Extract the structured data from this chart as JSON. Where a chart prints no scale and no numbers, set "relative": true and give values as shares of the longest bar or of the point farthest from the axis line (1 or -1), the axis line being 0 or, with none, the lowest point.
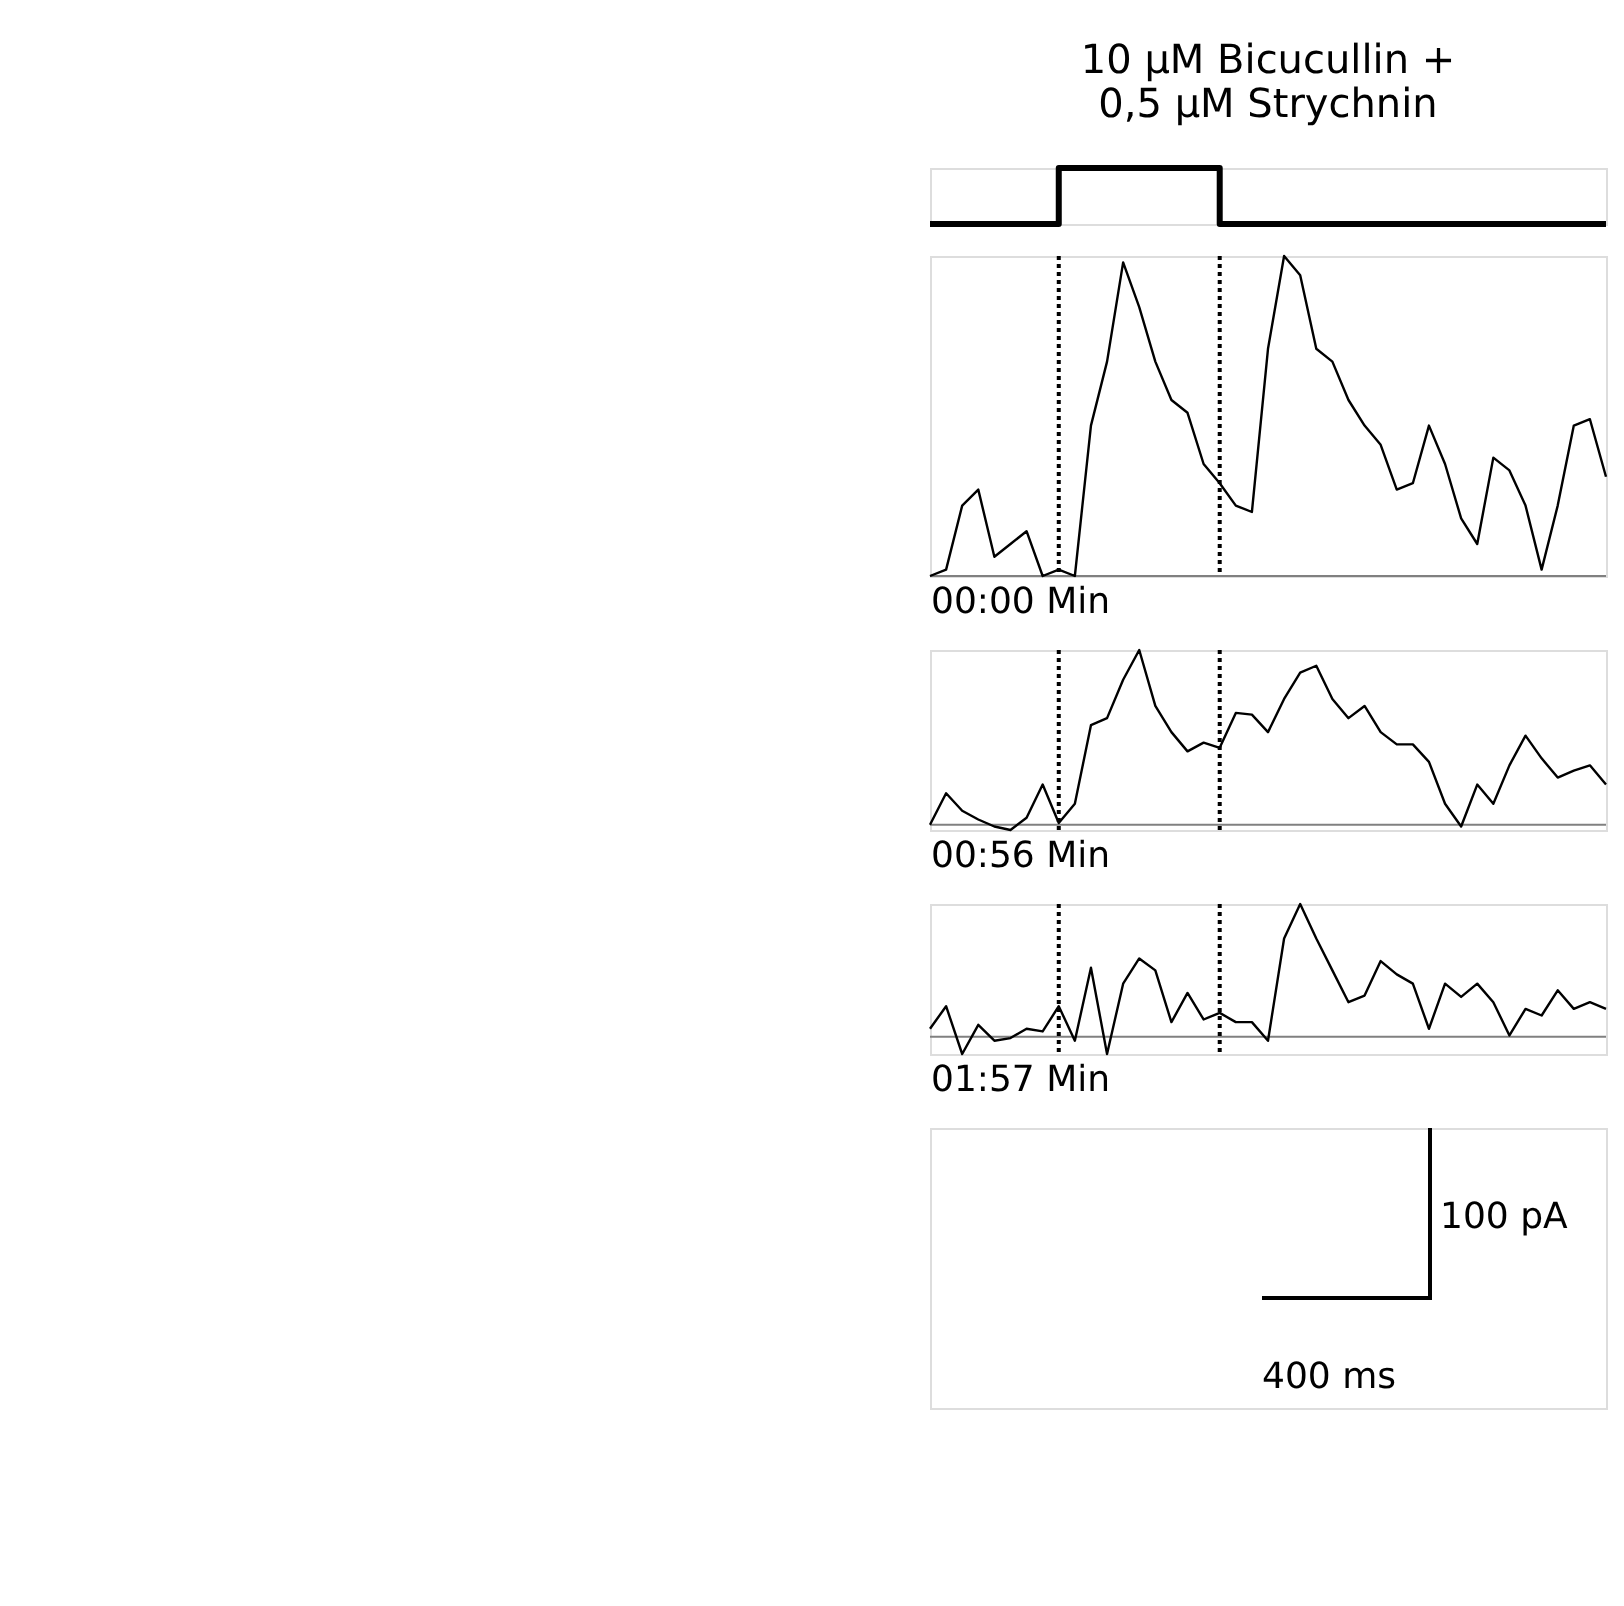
{
  "chart_data": [
    {
      "type": "step",
      "title": "10 μM Bicucullin +\n0,5 μM Strychnin",
      "relative": true,
      "tick_labels": false,
      "categories": [
        null,
        null,
        null,
        null,
        null,
        null,
        null,
        null,
        null,
        null,
        null,
        null,
        null,
        null,
        null,
        null,
        null,
        null,
        null,
        null,
        null,
        null,
        null,
        null,
        null,
        null,
        null,
        null,
        null,
        null,
        null,
        null,
        null,
        null,
        null,
        null,
        null,
        null,
        null,
        null,
        null,
        null,
        null
      ],
      "series": [
        {
          "color": "#000000",
          "values": [
            0,
            0,
            0,
            0,
            0,
            0,
            0,
            0,
            1,
            1,
            1,
            1,
            1,
            1,
            1,
            1,
            1,
            1,
            0,
            0,
            0,
            0,
            0,
            0,
            0,
            0,
            0,
            0,
            0,
            0,
            0,
            0,
            0,
            0,
            0,
            0,
            0,
            0,
            0,
            0,
            0,
            0,
            0
          ]
        }
      ]
    },
    {
      "type": "line",
      "xlabel": "00:00 Min",
      "relative": true,
      "tick_labels": false,
      "categories": [
        null,
        null,
        null,
        null,
        null,
        null,
        null,
        null,
        null,
        null,
        null,
        null,
        null,
        null,
        null,
        null,
        null,
        null,
        null,
        null,
        null,
        null,
        null,
        null,
        null,
        null,
        null,
        null,
        null,
        null,
        null,
        null,
        null,
        null,
        null,
        null,
        null,
        null,
        null,
        null,
        null,
        null,
        null
      ],
      "series": [
        {
          "color": "#000000",
          "values": [
            0,
            0.02,
            0.22,
            0.27,
            0.06,
            0.1,
            0.14,
            0,
            0.02,
            0,
            0.47,
            0.67,
            0.98,
            0.84,
            0.67,
            0.55,
            0.51,
            0.35,
            0.29,
            0.22,
            0.2,
            0.71,
            1.0,
            0.94,
            0.71,
            0.67,
            0.55,
            0.47,
            0.41,
            0.27,
            0.29,
            0.47,
            0.35,
            0.18,
            0.1,
            0.37,
            0.33,
            0.22,
            0.02,
            0.22,
            0.47,
            0.49,
            0.31
          ]
        }
      ]
    },
    {
      "type": "line",
      "xlabel": "00:56 Min",
      "relative": true,
      "tick_labels": false,
      "categories": [
        null,
        null,
        null,
        null,
        null,
        null,
        null,
        null,
        null,
        null,
        null,
        null,
        null,
        null,
        null,
        null,
        null,
        null,
        null,
        null,
        null,
        null,
        null,
        null,
        null,
        null,
        null,
        null,
        null,
        null,
        null,
        null,
        null,
        null,
        null,
        null,
        null,
        null,
        null,
        null,
        null,
        null,
        null
      ],
      "series": [
        {
          "color": "#000000",
          "values": [
            0,
            0.18,
            0.08,
            0.03,
            -0.01,
            -0.03,
            0.04,
            0.23,
            0.01,
            0.12,
            0.57,
            0.61,
            0.83,
            1.0,
            0.68,
            0.53,
            0.42,
            0.47,
            0.44,
            0.64,
            0.63,
            0.53,
            0.72,
            0.87,
            0.91,
            0.72,
            0.61,
            0.68,
            0.53,
            0.46,
            0.46,
            0.36,
            0.12,
            -0.01,
            0.23,
            0.12,
            0.34,
            0.51,
            0.38,
            0.27,
            0.31,
            0.34,
            0.23
          ]
        }
      ]
    },
    {
      "type": "line",
      "xlabel": "01:57 Min",
      "relative": true,
      "tick_labels": false,
      "categories": [
        null,
        null,
        null,
        null,
        null,
        null,
        null,
        null,
        null,
        null,
        null,
        null,
        null,
        null,
        null,
        null,
        null,
        null,
        null,
        null,
        null,
        null,
        null,
        null,
        null,
        null,
        null,
        null,
        null,
        null,
        null,
        null,
        null,
        null,
        null,
        null,
        null,
        null,
        null,
        null,
        null,
        null,
        null
      ],
      "series": [
        {
          "color": "#000000",
          "values": [
            0.06,
            0.23,
            -0.13,
            0.09,
            -0.03,
            -0.01,
            0.06,
            0.04,
            0.23,
            -0.03,
            0.52,
            -0.13,
            0.4,
            0.59,
            0.5,
            0.11,
            0.33,
            0.13,
            0.18,
            0.11,
            0.11,
            -0.03,
            0.74,
            1.0,
            0.74,
            0.5,
            0.26,
            0.31,
            0.57,
            0.47,
            0.4,
            0.06,
            0.4,
            0.3,
            0.4,
            0.26,
            0.01,
            0.21,
            0.16,
            0.35,
            0.21,
            0.26,
            0.21
          ]
        }
      ],
      "annotations": [
        "100 pA",
        "400 ms"
      ]
    }
  ]
}
